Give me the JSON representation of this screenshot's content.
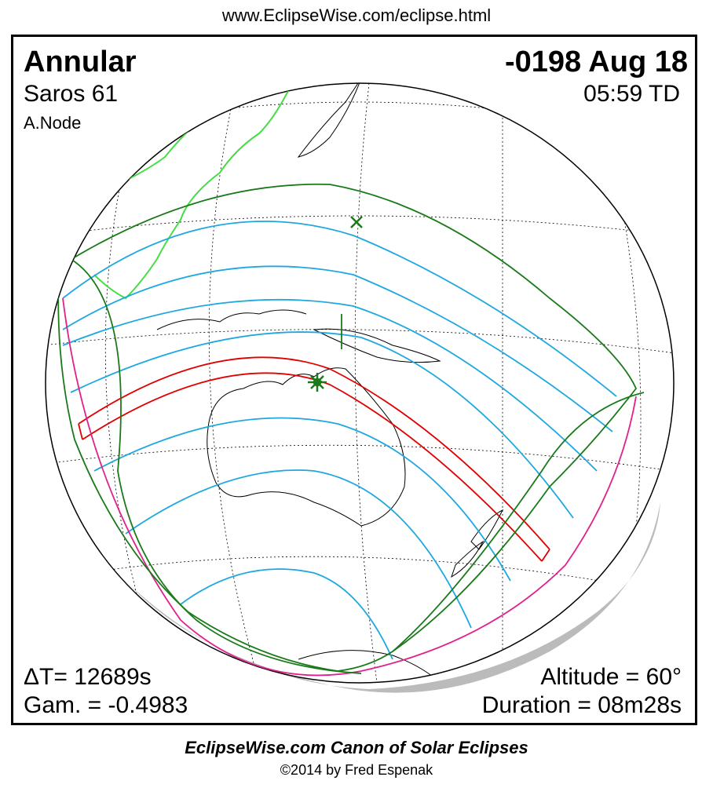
{
  "header": {
    "url": "www.EclipseWise.com/eclipse.html"
  },
  "eclipse": {
    "type": "Annular",
    "date": "-0198 Aug 18",
    "saros": "Saros  61",
    "time": "05:59 TD",
    "node": "A.Node",
    "delta_t": "ΔT=  12689s",
    "gamma": "Gam. = -0.4983",
    "altitude": "Altitude = 60°",
    "duration": "Duration = 08m28s"
  },
  "footer": {
    "canon": "EclipseWise.com Canon of Solar Eclipses",
    "copyright": "©2014 by Fred Espenak"
  },
  "colors": {
    "central_path": "#e00000",
    "penumbral_bands": "#1ea8e0",
    "penumbral_limit": "#e0208c",
    "rise_set_curves": "#1a7a1a",
    "coastline_old": "#44dd44",
    "coastline": "#000000",
    "grid": "#000000",
    "night_shade": "#bbbbbb"
  },
  "markers": [
    {
      "name": "greatest-eclipse",
      "symbol": "star",
      "color": "#1a7a1a"
    },
    {
      "name": "sub-solar-point",
      "symbol": "x",
      "color": "#1a7a1a"
    }
  ]
}
